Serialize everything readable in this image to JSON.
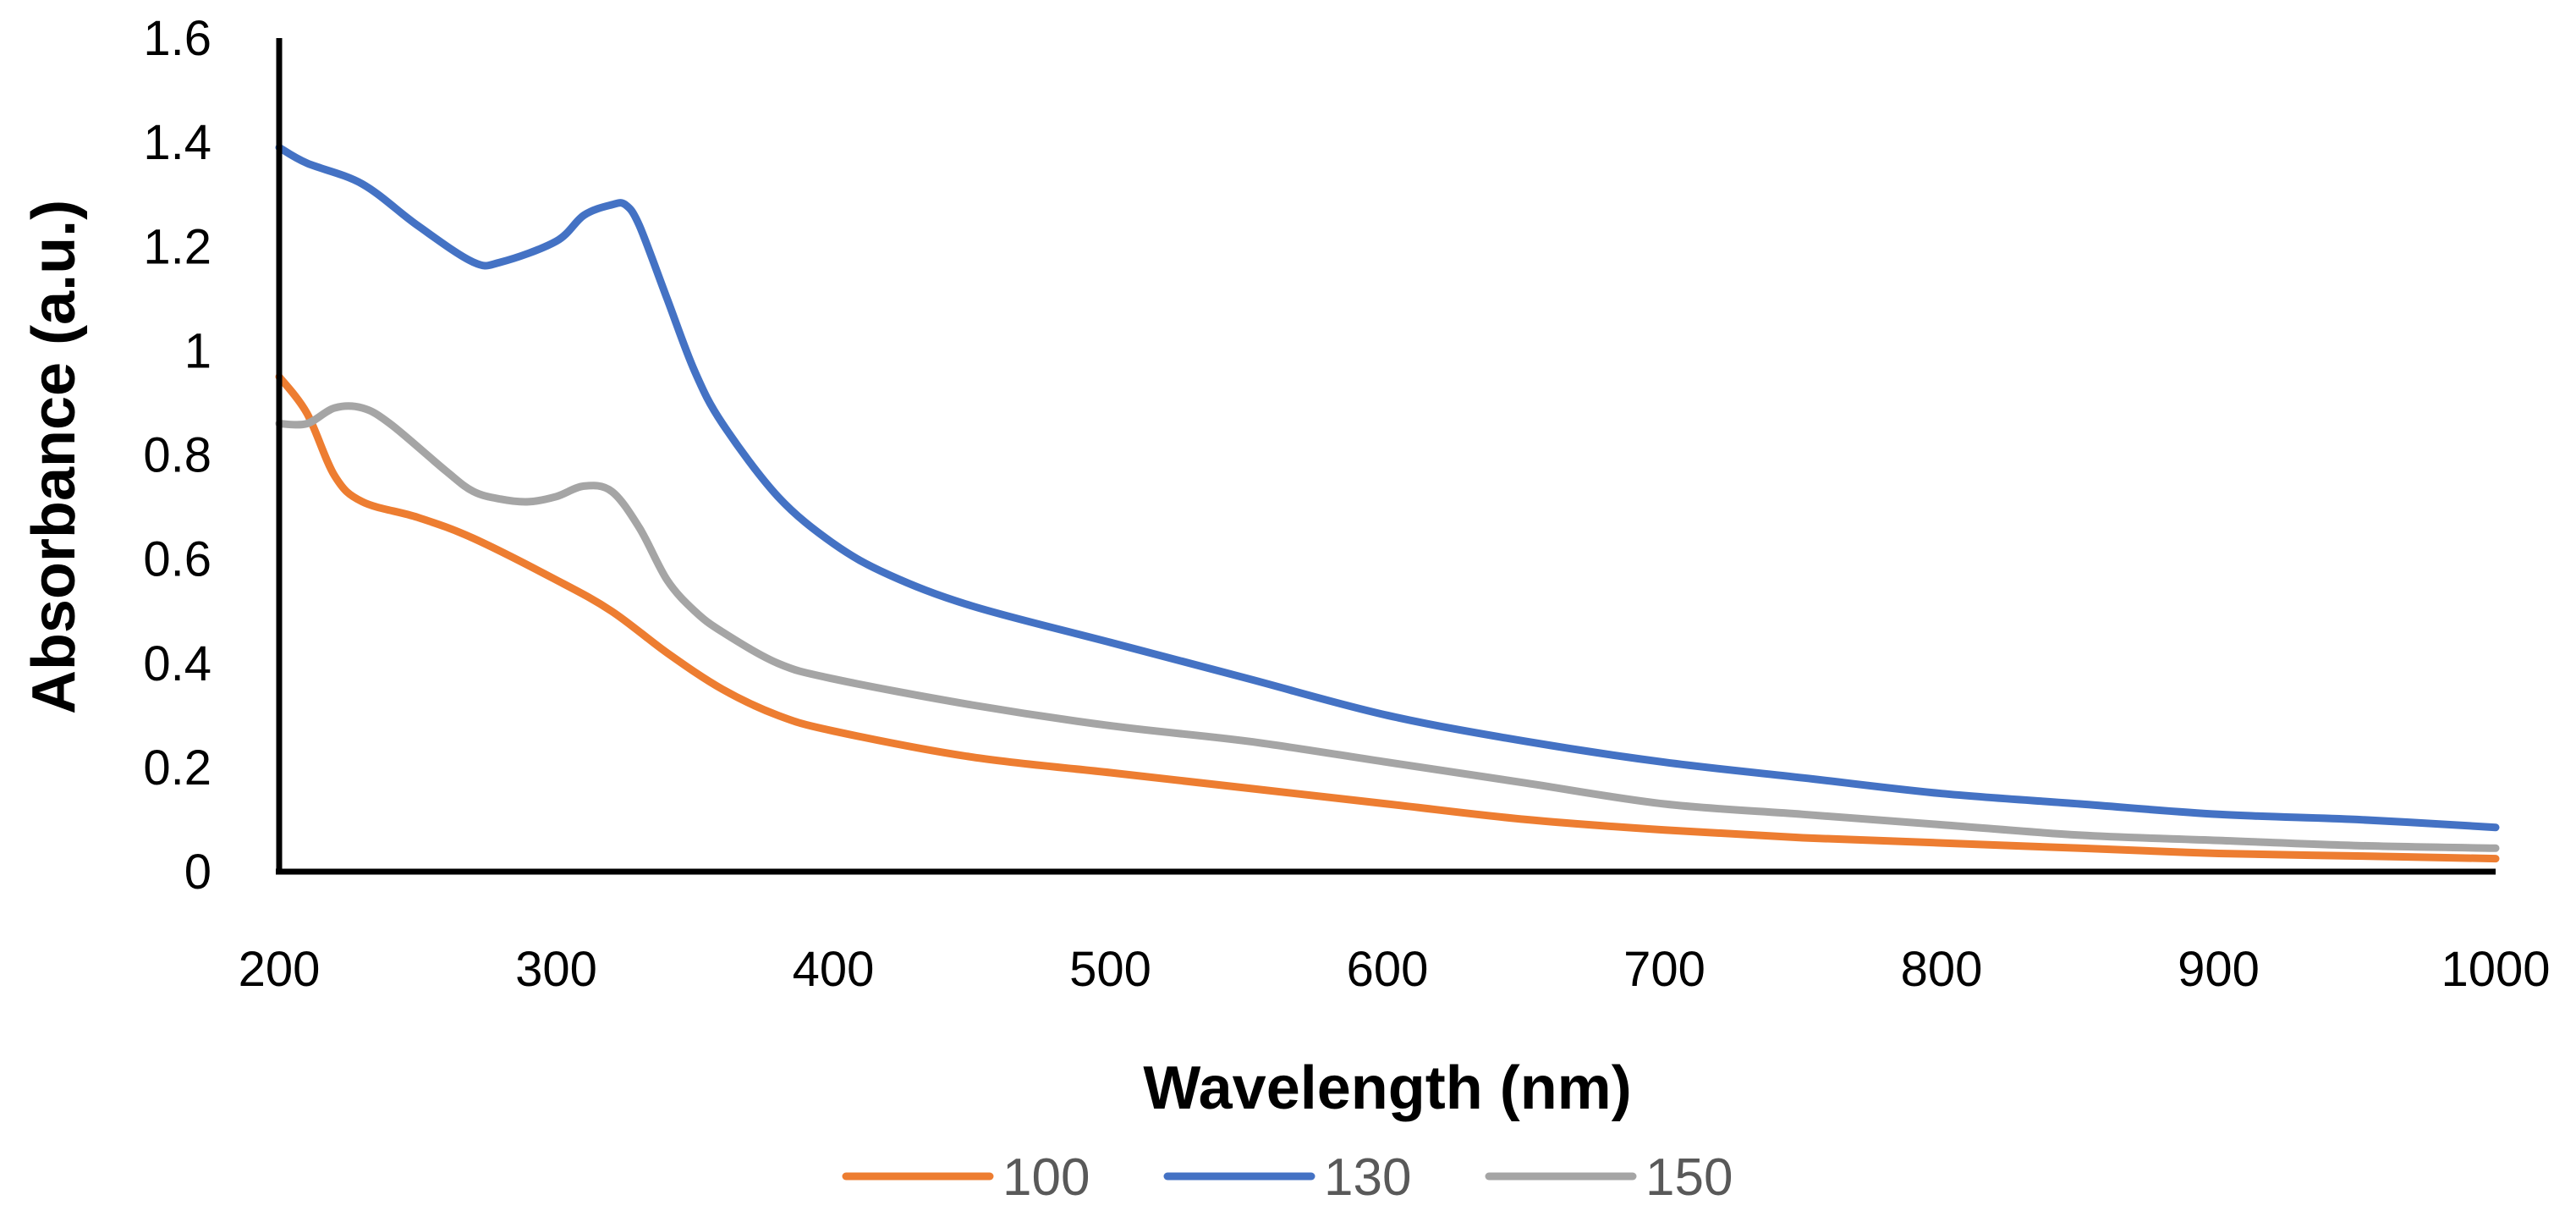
{
  "chart_data": {
    "type": "line",
    "title": "",
    "xlabel": "Wavelength (nm)",
    "ylabel": "Absorbance (a.u.)",
    "xlim": [
      200,
      1000
    ],
    "ylim": [
      0,
      1.6
    ],
    "xticks": [
      200,
      300,
      400,
      500,
      600,
      700,
      800,
      900,
      1000
    ],
    "yticks": [
      0,
      0.2,
      0.4,
      0.6,
      0.8,
      1,
      1.2,
      1.4,
      1.6
    ],
    "xtick_labels": [
      "200",
      "300",
      "400",
      "500",
      "600",
      "700",
      "800",
      "900",
      "1000"
    ],
    "ytick_labels": [
      "0",
      "0.2",
      "0.4",
      "0.6",
      "0.8",
      "1",
      "1.2",
      "1.4",
      "1.6"
    ],
    "grid": false,
    "legend_position": "bottom",
    "series": [
      {
        "name": "100",
        "color": "#ED7D31",
        "x": [
          200,
          210,
          220,
          230,
          250,
          270,
          300,
          320,
          340,
          360,
          380,
          400,
          450,
          500,
          550,
          600,
          650,
          700,
          750,
          800,
          850,
          900,
          950,
          1000
        ],
        "y": [
          0.95,
          0.88,
          0.76,
          0.71,
          0.68,
          0.64,
          0.56,
          0.5,
          0.42,
          0.35,
          0.3,
          0.27,
          0.22,
          0.19,
          0.16,
          0.13,
          0.1,
          0.08,
          0.065,
          0.055,
          0.045,
          0.035,
          0.03,
          0.025
        ]
      },
      {
        "name": "130",
        "color": "#4472C4",
        "x": [
          200,
          210,
          230,
          250,
          270,
          280,
          300,
          310,
          320,
          325,
          330,
          340,
          350,
          360,
          380,
          400,
          420,
          450,
          500,
          550,
          600,
          650,
          700,
          750,
          800,
          850,
          900,
          950,
          1000
        ],
        "y": [
          1.39,
          1.36,
          1.32,
          1.24,
          1.17,
          1.17,
          1.21,
          1.26,
          1.28,
          1.28,
          1.24,
          1.1,
          0.96,
          0.86,
          0.72,
          0.63,
          0.57,
          0.51,
          0.44,
          0.37,
          0.3,
          0.25,
          0.21,
          0.18,
          0.15,
          0.13,
          0.11,
          0.1,
          0.085
        ]
      },
      {
        "name": "150",
        "color": "#A5A5A5",
        "x": [
          200,
          210,
          220,
          230,
          240,
          260,
          270,
          280,
          290,
          300,
          310,
          320,
          330,
          340,
          350,
          360,
          380,
          400,
          450,
          500,
          550,
          600,
          650,
          700,
          750,
          800,
          850,
          900,
          950,
          1000
        ],
        "y": [
          0.86,
          0.86,
          0.89,
          0.89,
          0.86,
          0.77,
          0.73,
          0.715,
          0.71,
          0.72,
          0.74,
          0.73,
          0.66,
          0.56,
          0.5,
          0.46,
          0.4,
          0.37,
          0.32,
          0.28,
          0.25,
          0.21,
          0.17,
          0.13,
          0.11,
          0.09,
          0.07,
          0.06,
          0.05,
          0.045
        ]
      }
    ]
  }
}
